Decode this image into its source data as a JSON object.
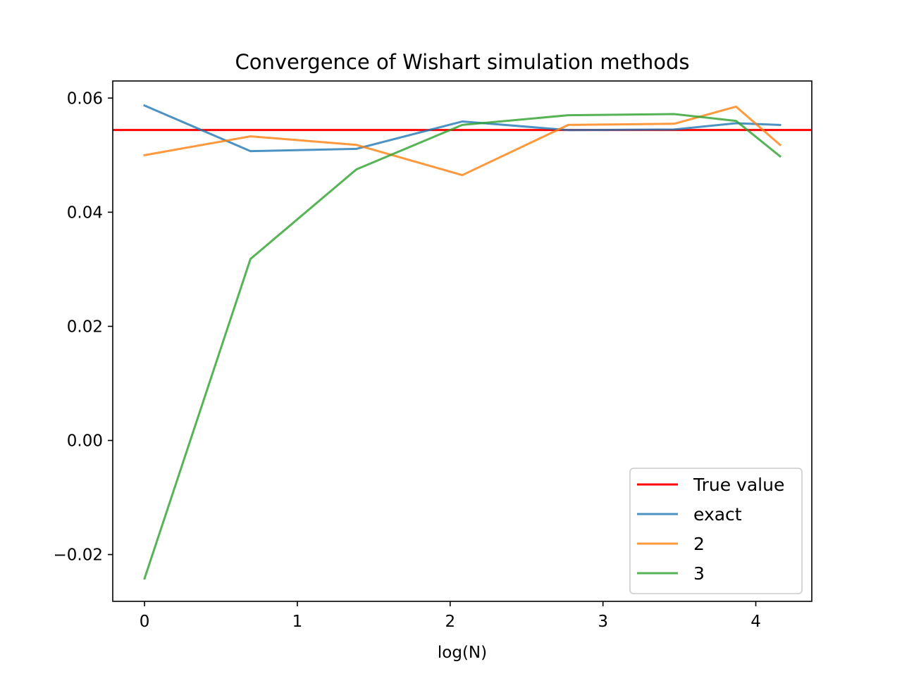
{
  "chart_data": {
    "type": "line",
    "title": "Convergence of Wishart simulation methods",
    "xlabel": "log(N)",
    "ylabel": "",
    "xlim": [
      -0.2079,
      4.3665
    ],
    "ylim": [
      -0.0282,
      0.063
    ],
    "xticks": [
      0,
      1,
      2,
      3,
      4
    ],
    "xtick_labels": [
      "0",
      "1",
      "2",
      "3",
      "4"
    ],
    "yticks": [
      -0.02,
      0.0,
      0.02,
      0.04,
      0.06
    ],
    "ytick_labels": [
      "−0.02",
      "0.00",
      "0.02",
      "0.04",
      "0.06"
    ],
    "grid": false,
    "legend_position": "lower-right",
    "reference_line": {
      "name": "True value",
      "y": 0.0544,
      "color": "#ff0000"
    },
    "x": [
      0.0,
      0.6931,
      1.3863,
      2.0794,
      2.7726,
      3.4657,
      3.8712,
      4.1589
    ],
    "series": [
      {
        "name": "exact",
        "color": "#1f77b4",
        "values": [
          0.0587,
          0.0507,
          0.0511,
          0.0559,
          0.0544,
          0.0545,
          0.0556,
          0.0553
        ]
      },
      {
        "name": "2",
        "color": "#ff7f0e",
        "values": [
          0.05,
          0.0533,
          0.0518,
          0.0465,
          0.0553,
          0.0555,
          0.0585,
          0.0518
        ]
      },
      {
        "name": "3",
        "color": "#2ca02c",
        "values": [
          -0.0242,
          0.0318,
          0.0475,
          0.0553,
          0.057,
          0.0572,
          0.056,
          0.0498
        ]
      }
    ]
  }
}
